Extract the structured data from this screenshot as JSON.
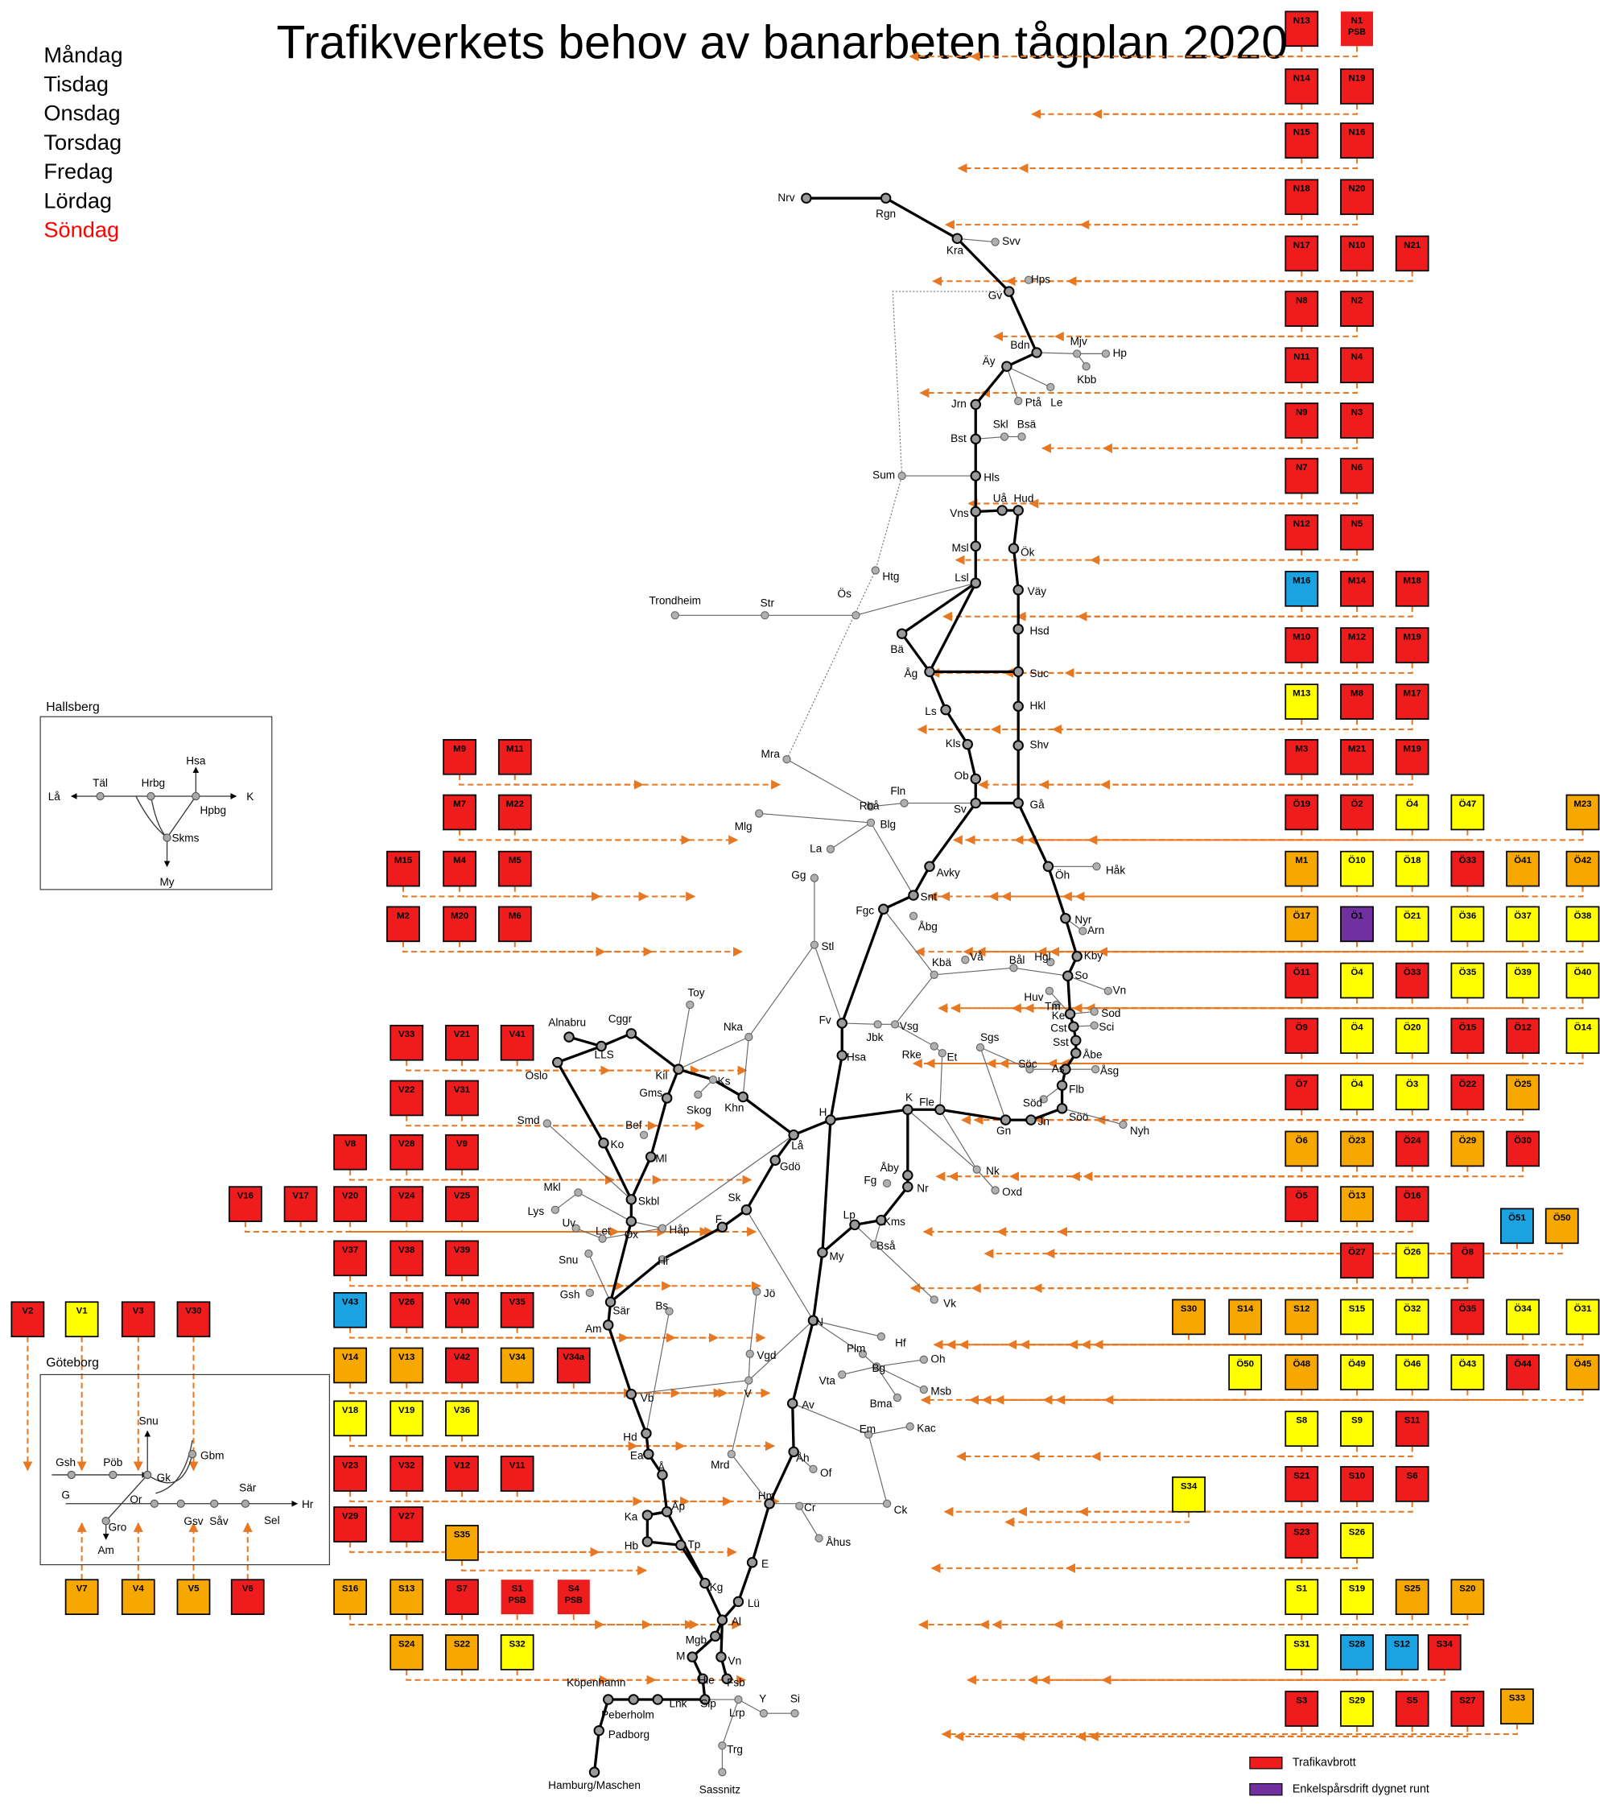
{
  "header": {
    "title": "Trafikverkets behov av banarbeten tågplan 2020"
  },
  "weekdays": [
    {
      "label": "Måndag",
      "color": "#000000"
    },
    {
      "label": "Tisdag",
      "color": "#000000"
    },
    {
      "label": "Onsdag",
      "color": "#000000"
    },
    {
      "label": "Torsdag",
      "color": "#000000"
    },
    {
      "label": "Fredag",
      "color": "#000000"
    },
    {
      "label": "Lördag",
      "color": "#000000"
    },
    {
      "label": "Söndag",
      "color": "#ff0000"
    }
  ],
  "stations": [
    "Nrv",
    "Rgn",
    "Kra",
    "Svv",
    "Hps",
    "Gv",
    "Bdn",
    "Mjv",
    "Hp",
    "Kbb",
    "Äy",
    "Ptå",
    "Le",
    "Jrn",
    "Skl",
    "Bsä",
    "Bst",
    "Sum",
    "Hls",
    "Vns",
    "Uå",
    "Hud",
    "Msl",
    "Ök",
    "Lsl",
    "Htg",
    "Väy",
    "Trondheim",
    "Str",
    "Ös",
    "Hsd",
    "Bä",
    "Åg",
    "Suc",
    "Ls",
    "Hkl",
    "Kls",
    "Shv",
    "Mra",
    "Ob",
    "Sv",
    "Gå",
    "Fln",
    "Rbå",
    "Blg",
    "Mlg",
    "La",
    "Gg",
    "Avky",
    "Öh",
    "Håk",
    "Snt",
    "Fgc",
    "Åbg",
    "Nyr",
    "Arn",
    "Kby",
    "Stl",
    "Kbä",
    "Vå",
    "Bål",
    "Hgl",
    "So",
    "Huv",
    "Vn",
    "Tm",
    "Ke",
    "Sod",
    "Cst",
    "Sci",
    "Sst",
    "Åbe",
    "Fv",
    "Jbk",
    "Vsg",
    "Rke",
    "Et",
    "Sgs",
    "Söc",
    "As",
    "Åsg",
    "Flb",
    "Söd",
    "Söö",
    "Nyh",
    "Jn",
    "Gn",
    "Fle",
    "K",
    "H",
    "Hsa",
    "Toy",
    "Nka",
    "Alnabru",
    "Cggr",
    "LLS",
    "Oslo",
    "Kil",
    "Ks",
    "Skog",
    "Khn",
    "Gms",
    "Smd",
    "Ko",
    "Bef",
    "Ml",
    "Lå",
    "Gdö",
    "Fg",
    "Åby",
    "Nr",
    "Nk",
    "Oxd",
    "Mkl",
    "Lys",
    "Skbl",
    "Lp",
    "Kms",
    "Sk",
    "Uv",
    "Ox",
    "Let",
    "Håp",
    "Snu",
    "F",
    "My",
    "Bså",
    "Hr",
    "Vk",
    "Gsh",
    "Sär",
    "Jö",
    "N",
    "Bs",
    "Am",
    "Hf",
    "Plm",
    "Bg",
    "Oh",
    "Vta",
    "Msb",
    "Vgd",
    "V",
    "Vb",
    "Av",
    "Bma",
    "Kac",
    "Hd",
    "Em",
    "Ea",
    "Mrd",
    "Åh",
    "Of",
    "Å",
    "Hm",
    "Cr",
    "Ck",
    "Ka",
    "Åp",
    "Åhus",
    "Hb",
    "Tp",
    "E",
    "Kg",
    "Lü",
    "Al",
    "Mgb",
    "M",
    "Vn",
    "Hie",
    "Fsb",
    "Köpenhamn",
    "Peberholm",
    "Lnk",
    "Slp",
    "Lrp",
    "Y",
    "Si",
    "Padborg",
    "Trg",
    "Hamburg/Maschen",
    "Sassnitz"
  ],
  "boxes": [
    {
      "label": "N13",
      "color": "#ee1c1c"
    },
    {
      "label": "N1",
      "note": "PSB",
      "color": "#ee1c1c"
    },
    {
      "label": "N14",
      "color": "#ee1c1c"
    },
    {
      "label": "N19",
      "color": "#ee1c1c"
    },
    {
      "label": "N15",
      "color": "#ee1c1c"
    },
    {
      "label": "N16",
      "color": "#ee1c1c"
    },
    {
      "label": "N18",
      "color": "#ee1c1c"
    },
    {
      "label": "N20",
      "color": "#ee1c1c"
    },
    {
      "label": "N17",
      "color": "#ee1c1c"
    },
    {
      "label": "N10",
      "color": "#ee1c1c"
    },
    {
      "label": "N21",
      "color": "#ee1c1c"
    },
    {
      "label": "N8",
      "color": "#ee1c1c"
    },
    {
      "label": "N2",
      "color": "#ee1c1c"
    },
    {
      "label": "N11",
      "color": "#ee1c1c"
    },
    {
      "label": "N4",
      "color": "#ee1c1c"
    },
    {
      "label": "N9",
      "color": "#ee1c1c"
    },
    {
      "label": "N3",
      "color": "#ee1c1c"
    },
    {
      "label": "N7",
      "color": "#ee1c1c"
    },
    {
      "label": "N6",
      "color": "#ee1c1c"
    },
    {
      "label": "N12",
      "color": "#ee1c1c"
    },
    {
      "label": "N5",
      "color": "#ee1c1c"
    },
    {
      "label": "M16",
      "color": "#1aa3e0"
    },
    {
      "label": "M14",
      "color": "#ee1c1c"
    },
    {
      "label": "M18",
      "color": "#ee1c1c"
    },
    {
      "label": "M10",
      "color": "#ee1c1c"
    },
    {
      "label": "M12",
      "color": "#ee1c1c"
    },
    {
      "label": "M19",
      "color": "#ee1c1c"
    },
    {
      "label": "M13",
      "color": "#ffff00"
    },
    {
      "label": "M8",
      "color": "#ee1c1c"
    },
    {
      "label": "M17",
      "color": "#ee1c1c"
    },
    {
      "label": "M3",
      "color": "#ee1c1c"
    },
    {
      "label": "M21",
      "color": "#ee1c1c"
    },
    {
      "label": "M19",
      "color": "#ee1c1c"
    },
    {
      "label": "Ö19",
      "color": "#ee1c1c"
    },
    {
      "label": "Ö2",
      "color": "#ee1c1c"
    },
    {
      "label": "Ö4",
      "color": "#ffff00"
    },
    {
      "label": "Ö47",
      "color": "#ffff00"
    },
    {
      "label": "M23",
      "color": "#f6a800"
    },
    {
      "label": "M1",
      "color": "#f6a800"
    },
    {
      "label": "Ö10",
      "color": "#ffff00"
    },
    {
      "label": "Ö18",
      "color": "#ffff00"
    },
    {
      "label": "Ö33",
      "color": "#ee1c1c"
    },
    {
      "label": "Ö41",
      "color": "#f6a800"
    },
    {
      "label": "Ö42",
      "color": "#f6a800"
    },
    {
      "label": "Ö17",
      "color": "#f6a800"
    },
    {
      "label": "Ö1",
      "color": "#7030a0"
    },
    {
      "label": "Ö21",
      "color": "#ffff00"
    },
    {
      "label": "Ö36",
      "color": "#ffff00"
    },
    {
      "label": "Ö37",
      "color": "#ffff00"
    },
    {
      "label": "Ö38",
      "color": "#ffff00"
    },
    {
      "label": "Ö11",
      "color": "#ee1c1c"
    },
    {
      "label": "Ö4",
      "color": "#ffff00"
    },
    {
      "label": "Ö33",
      "color": "#ee1c1c"
    },
    {
      "label": "Ö35",
      "color": "#ffff00"
    },
    {
      "label": "Ö39",
      "color": "#ffff00"
    },
    {
      "label": "Ö40",
      "color": "#ffff00"
    },
    {
      "label": "Ö9",
      "color": "#ee1c1c"
    },
    {
      "label": "Ö4",
      "color": "#ffff00"
    },
    {
      "label": "Ö20",
      "color": "#ffff00"
    },
    {
      "label": "Ö15",
      "color": "#ee1c1c"
    },
    {
      "label": "Ö12",
      "color": "#ee1c1c"
    },
    {
      "label": "Ö14",
      "color": "#ffff00"
    },
    {
      "label": "Ö7",
      "color": "#ee1c1c"
    },
    {
      "label": "Ö4",
      "color": "#ffff00"
    },
    {
      "label": "Ö3",
      "color": "#ffff00"
    },
    {
      "label": "Ö22",
      "color": "#ee1c1c"
    },
    {
      "label": "Ö25",
      "color": "#f6a800"
    },
    {
      "label": "Ö6",
      "color": "#f6a800"
    },
    {
      "label": "Ö23",
      "color": "#f6a800"
    },
    {
      "label": "Ö24",
      "color": "#ee1c1c"
    },
    {
      "label": "Ö29",
      "color": "#f6a800"
    },
    {
      "label": "Ö30",
      "color": "#ee1c1c"
    },
    {
      "label": "Ö5",
      "color": "#ee1c1c"
    },
    {
      "label": "Ö13",
      "color": "#f6a800"
    },
    {
      "label": "Ö16",
      "color": "#ee1c1c"
    },
    {
      "label": "Ö51",
      "color": "#1aa3e0"
    },
    {
      "label": "Ö50",
      "color": "#f6a800"
    },
    {
      "label": "Ö27",
      "color": "#ee1c1c"
    },
    {
      "label": "Ö26",
      "color": "#ffff00"
    },
    {
      "label": "Ö8",
      "color": "#ee1c1c"
    },
    {
      "label": "S30",
      "color": "#f6a800"
    },
    {
      "label": "S14",
      "color": "#f6a800"
    },
    {
      "label": "S12",
      "color": "#f6a800"
    },
    {
      "label": "S15",
      "color": "#ffff00"
    },
    {
      "label": "Ö32",
      "color": "#ffff00"
    },
    {
      "label": "Ö35",
      "color": "#ee1c1c"
    },
    {
      "label": "Ö34",
      "color": "#ffff00"
    },
    {
      "label": "Ö31",
      "color": "#ffff00"
    },
    {
      "label": "Ö50",
      "color": "#ffff00"
    },
    {
      "label": "Ö48",
      "color": "#f6a800"
    },
    {
      "label": "Ö49",
      "color": "#ffff00"
    },
    {
      "label": "Ö46",
      "color": "#ffff00"
    },
    {
      "label": "Ö43",
      "color": "#ffff00"
    },
    {
      "label": "Ö44",
      "color": "#ee1c1c"
    },
    {
      "label": "Ö45",
      "color": "#f6a800"
    },
    {
      "label": "S8",
      "color": "#ffff00"
    },
    {
      "label": "S9",
      "color": "#ffff00"
    },
    {
      "label": "S11",
      "color": "#ee1c1c"
    },
    {
      "label": "S21",
      "color": "#ee1c1c"
    },
    {
      "label": "S10",
      "color": "#ee1c1c"
    },
    {
      "label": "S6",
      "color": "#ee1c1c"
    },
    {
      "label": "S34",
      "color": "#ffff00"
    },
    {
      "label": "S23",
      "color": "#ee1c1c"
    },
    {
      "label": "S26",
      "color": "#ffff00"
    },
    {
      "label": "S1",
      "color": "#ffff00"
    },
    {
      "label": "S19",
      "color": "#ffff00"
    },
    {
      "label": "S25",
      "color": "#f6a800"
    },
    {
      "label": "S20",
      "color": "#f6a800"
    },
    {
      "label": "S31",
      "color": "#ffff00"
    },
    {
      "label": "S28",
      "color": "#1aa3e0"
    },
    {
      "label": "S12",
      "color": "#1aa3e0"
    },
    {
      "label": "S34",
      "color": "#ee1c1c"
    },
    {
      "label": "S3",
      "color": "#ee1c1c"
    },
    {
      "label": "S29",
      "color": "#ffff00"
    },
    {
      "label": "S5",
      "color": "#ee1c1c"
    },
    {
      "label": "S27",
      "color": "#ee1c1c"
    },
    {
      "label": "S33",
      "color": "#f6a800"
    },
    {
      "label": "M9",
      "color": "#ee1c1c"
    },
    {
      "label": "M11",
      "color": "#ee1c1c"
    },
    {
      "label": "M7",
      "color": "#ee1c1c"
    },
    {
      "label": "M22",
      "color": "#ee1c1c"
    },
    {
      "label": "M15",
      "color": "#ee1c1c"
    },
    {
      "label": "M4",
      "color": "#ee1c1c"
    },
    {
      "label": "M5",
      "color": "#ee1c1c"
    },
    {
      "label": "M2",
      "color": "#ee1c1c"
    },
    {
      "label": "M20",
      "color": "#ee1c1c"
    },
    {
      "label": "M6",
      "color": "#ee1c1c"
    },
    {
      "label": "V33",
      "color": "#ee1c1c"
    },
    {
      "label": "V21",
      "color": "#ee1c1c"
    },
    {
      "label": "V41",
      "color": "#ee1c1c"
    },
    {
      "label": "V22",
      "color": "#ee1c1c"
    },
    {
      "label": "V31",
      "color": "#ee1c1c"
    },
    {
      "label": "V8",
      "color": "#ee1c1c"
    },
    {
      "label": "V28",
      "color": "#ee1c1c"
    },
    {
      "label": "V9",
      "color": "#ee1c1c"
    },
    {
      "label": "V16",
      "color": "#ee1c1c"
    },
    {
      "label": "V17",
      "color": "#ee1c1c"
    },
    {
      "label": "V20",
      "color": "#ee1c1c"
    },
    {
      "label": "V24",
      "color": "#ee1c1c"
    },
    {
      "label": "V25",
      "color": "#ee1c1c"
    },
    {
      "label": "V37",
      "color": "#ee1c1c"
    },
    {
      "label": "V38",
      "color": "#ee1c1c"
    },
    {
      "label": "V39",
      "color": "#ee1c1c"
    },
    {
      "label": "V43",
      "color": "#1aa3e0"
    },
    {
      "label": "V26",
      "color": "#ee1c1c"
    },
    {
      "label": "V40",
      "color": "#ee1c1c"
    },
    {
      "label": "V35",
      "color": "#ee1c1c"
    },
    {
      "label": "V14",
      "color": "#f6a800"
    },
    {
      "label": "V13",
      "color": "#f6a800"
    },
    {
      "label": "V42",
      "color": "#ee1c1c"
    },
    {
      "label": "V34",
      "color": "#f6a800"
    },
    {
      "label": "V34a",
      "color": "#ee1c1c"
    },
    {
      "label": "V18",
      "color": "#ffff00"
    },
    {
      "label": "V19",
      "color": "#ffff00"
    },
    {
      "label": "V36",
      "color": "#ffff00"
    },
    {
      "label": "V23",
      "color": "#ee1c1c"
    },
    {
      "label": "V32",
      "color": "#ee1c1c"
    },
    {
      "label": "V12",
      "color": "#ee1c1c"
    },
    {
      "label": "V11",
      "color": "#ee1c1c"
    },
    {
      "label": "V29",
      "color": "#ee1c1c"
    },
    {
      "label": "V27",
      "color": "#ee1c1c"
    },
    {
      "label": "S35",
      "color": "#f6a800"
    },
    {
      "label": "S16",
      "color": "#f6a800"
    },
    {
      "label": "S13",
      "color": "#f6a800"
    },
    {
      "label": "S7",
      "color": "#ee1c1c"
    },
    {
      "label": "S1",
      "note": "PSB",
      "color": "#ee1c1c"
    },
    {
      "label": "S4",
      "note": "PSB",
      "color": "#ee1c1c"
    },
    {
      "label": "S24",
      "color": "#f6a800"
    },
    {
      "label": "S22",
      "color": "#f6a800"
    },
    {
      "label": "S32",
      "color": "#ffff00"
    },
    {
      "label": "V2",
      "color": "#ee1c1c"
    },
    {
      "label": "V1",
      "color": "#ffff00"
    },
    {
      "label": "V3",
      "color": "#ee1c1c"
    },
    {
      "label": "V30",
      "color": "#ee1c1c"
    },
    {
      "label": "V7",
      "color": "#f6a800"
    },
    {
      "label": "V4",
      "color": "#f6a800"
    },
    {
      "label": "V5",
      "color": "#f6a800"
    },
    {
      "label": "V6",
      "color": "#ee1c1c"
    }
  ],
  "insets": [
    {
      "title": "Hallsberg",
      "labels": [
        "Lå",
        "Täl",
        "Hrbg",
        "Hsa",
        "K",
        "Hpbg",
        "Skms",
        "My"
      ]
    },
    {
      "title": "Göteborg",
      "labels": [
        "Snu",
        "Gsh",
        "Pöb",
        "Gk",
        "Gbm",
        "G",
        "Or",
        "Sär",
        "Hr",
        "Gro",
        "Gsv",
        "Såv",
        "Sel",
        "Am"
      ]
    }
  ],
  "legend": [
    {
      "label": "Trafikavbrott",
      "color": "#ee1c1c"
    },
    {
      "label": "Enkelspårsdrift dygnet runt",
      "color": "#7030a0"
    }
  ]
}
